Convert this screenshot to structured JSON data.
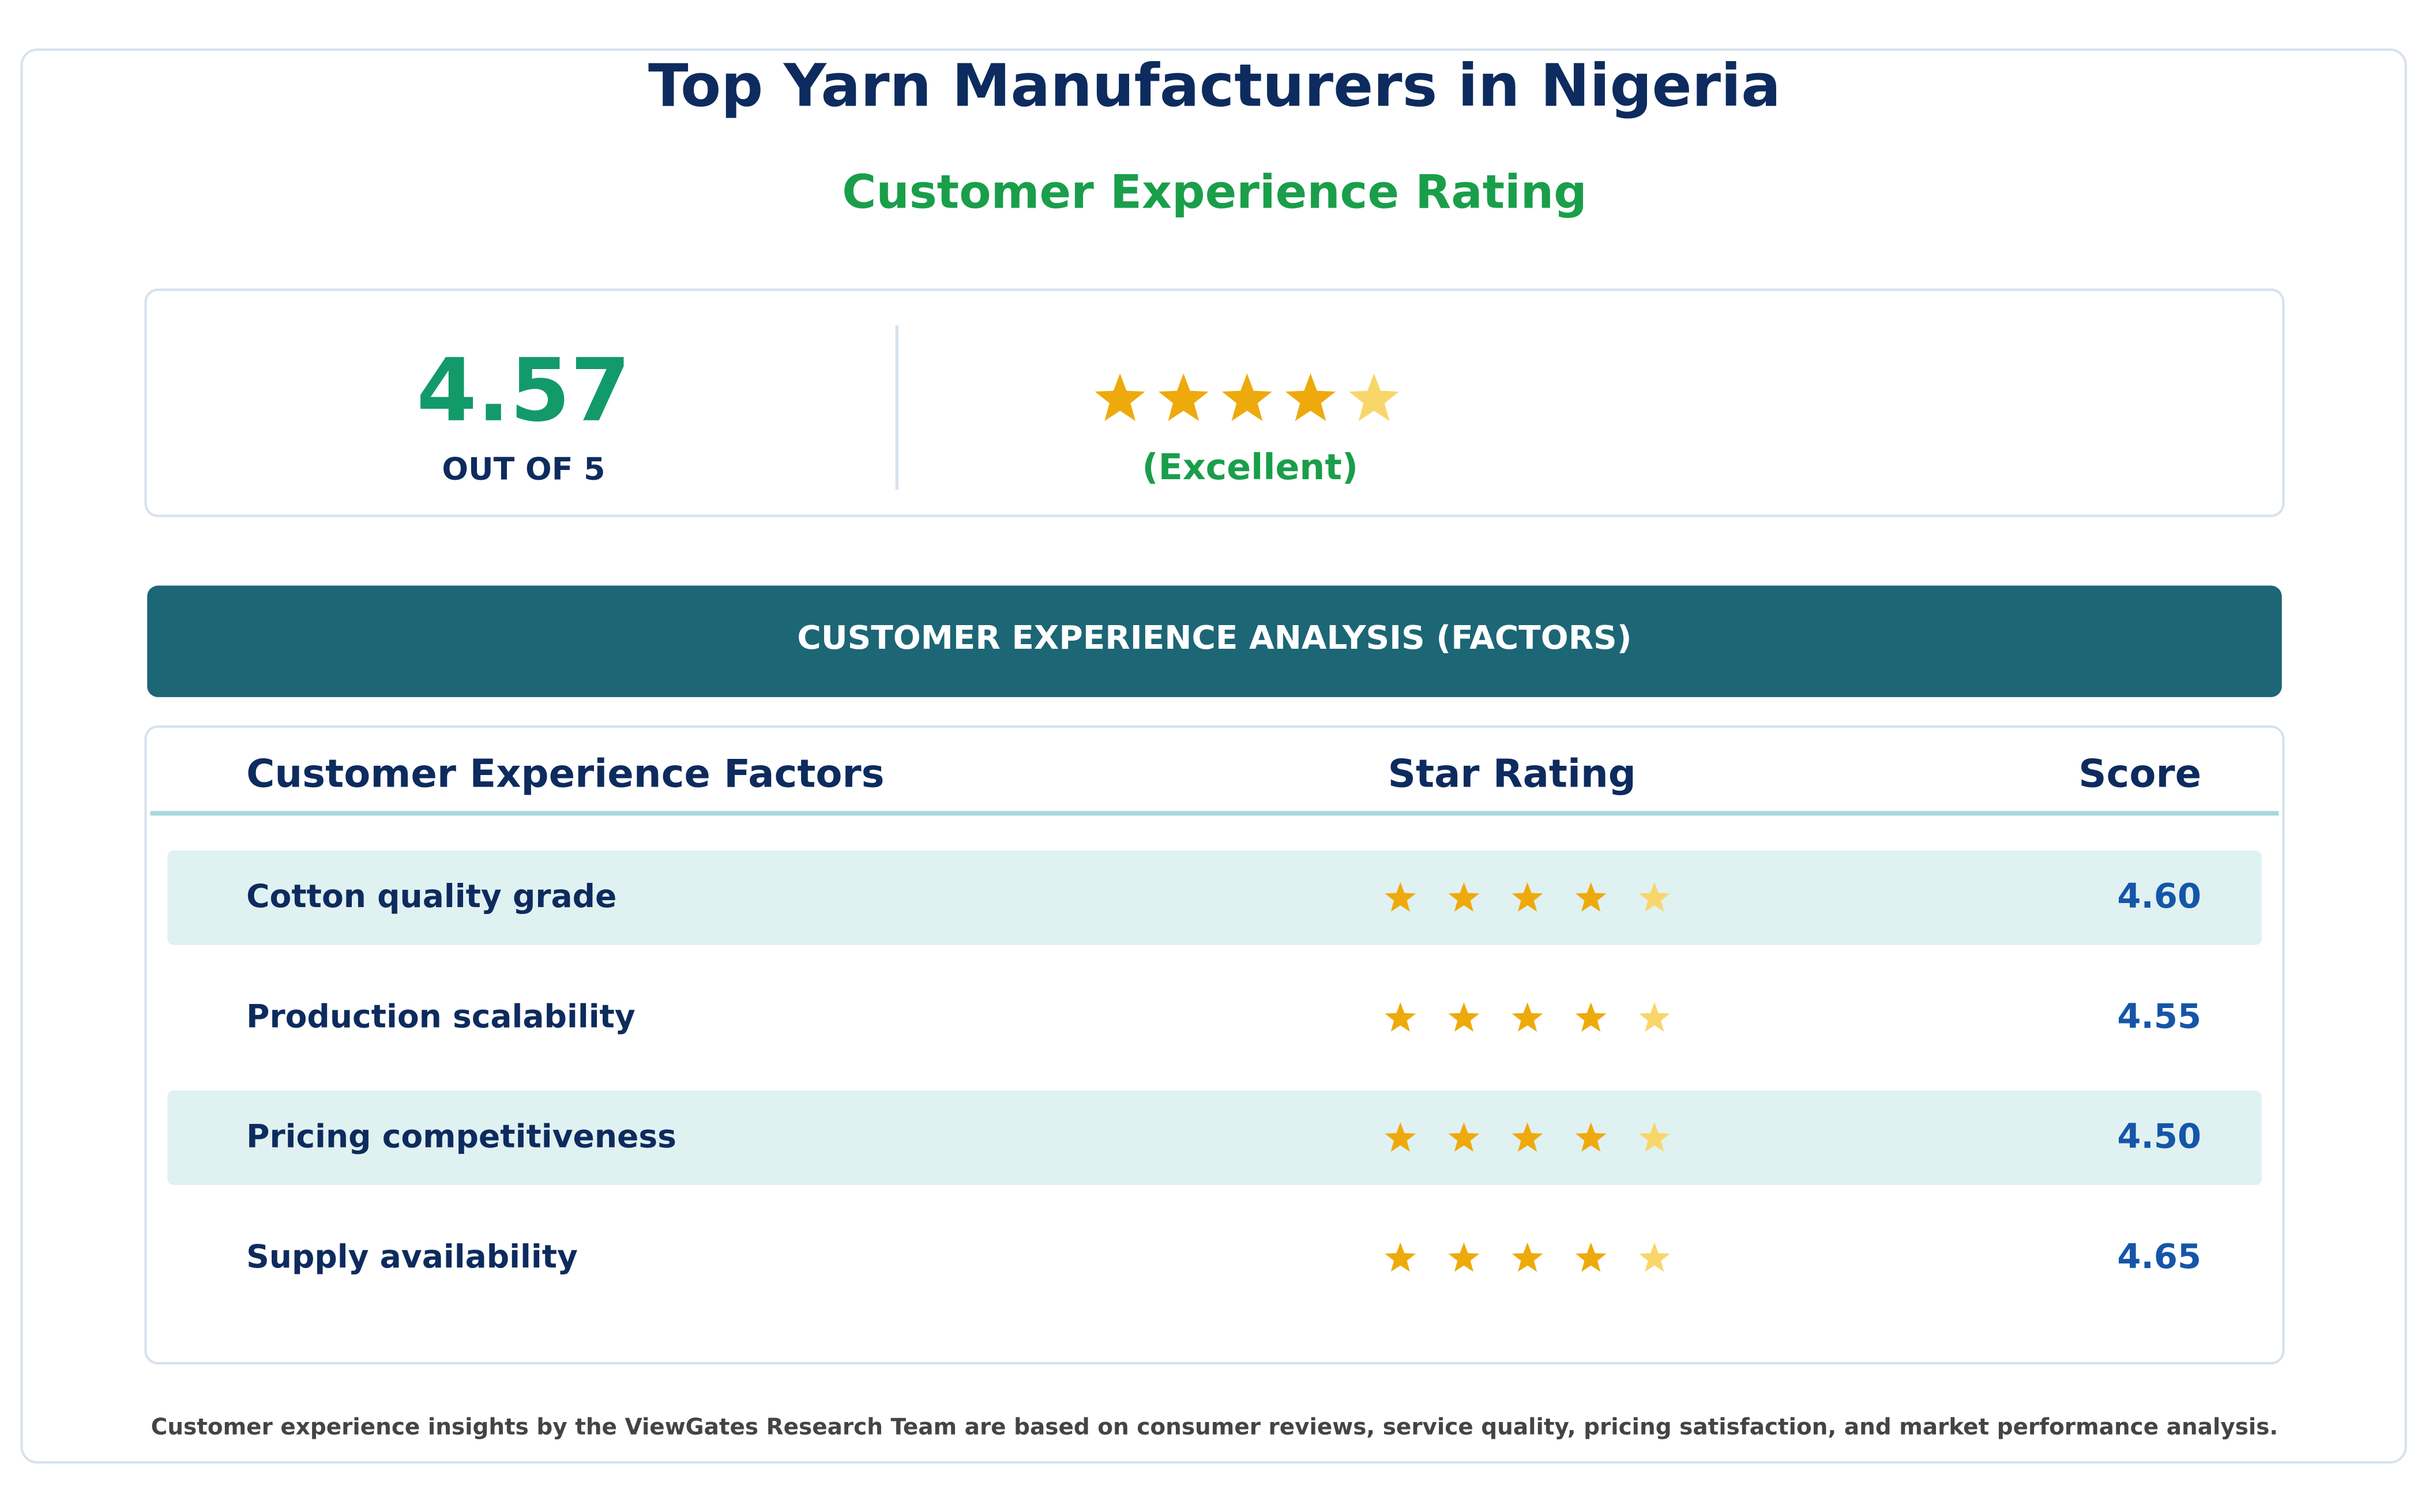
{
  "header": {
    "title": "Top Yarn Manufacturers in Nigeria",
    "subtitle": "Customer Experience Rating"
  },
  "summary": {
    "score": 4.57,
    "score_caption": "OUT OF 5",
    "verdict": "(Excellent)"
  },
  "section_title": "CUSTOMER EXPERIENCE ANALYSIS (FACTORS)",
  "table": {
    "columns": [
      "Customer Experience Factors",
      "Star Rating",
      "Score"
    ],
    "rows": [
      [
        "Cotton quality grade",
        "4.60"
      ],
      [
        "Production scalability",
        "4.55"
      ],
      [
        "Pricing competitiveness",
        "4.50"
      ],
      [
        "Supply availability",
        "4.65"
      ]
    ]
  },
  "footer": "Customer experience insights by the ViewGates Research Team are based on consumer reviews, service quality, pricing satisfaction, and market performance analysis."
}
